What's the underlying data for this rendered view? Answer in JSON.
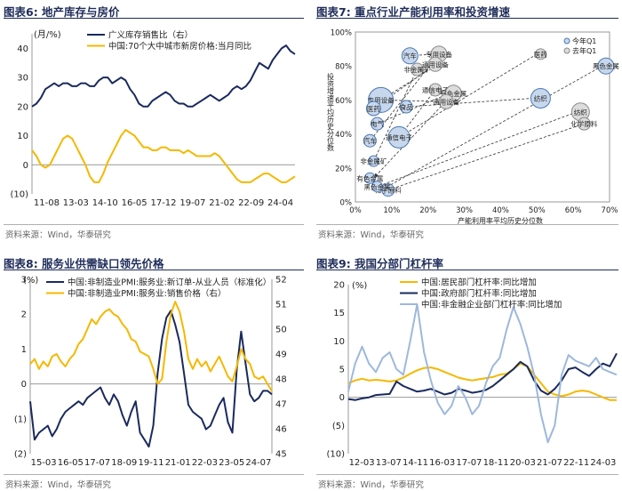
{
  "colors": {
    "navy": "#1a2a5e",
    "gold": "#f5b800",
    "lightblue": "#9db8dc",
    "bubbleFill": "#c8d8ec",
    "bubbleEdge": "#4a78b5",
    "grayFill": "#dcdcdc",
    "grayEdge": "#888888",
    "title": "#1f2d5a"
  },
  "chart_data": [
    {
      "id": "c6",
      "type": "line",
      "title": "图表6:  地产库存与房价",
      "unit_label": "(月/%)",
      "source": "资料来源：Wind，华泰研究",
      "x_ticks": [
        "11-08",
        "13-03",
        "14-10",
        "16-05",
        "17-12",
        "19-07",
        "21-02",
        "22-09",
        "24-04"
      ],
      "ylim": [
        -10,
        45
      ],
      "y_ticks": [
        -10,
        0,
        10,
        20,
        30,
        40
      ],
      "y_tick_labels": [
        "(10)",
        "0",
        "10",
        "20",
        "30",
        "40"
      ],
      "series": [
        {
          "name": "广义库存销售比（右）",
          "color": "#1a2a5e",
          "values": [
            20,
            21,
            23,
            26,
            27,
            28,
            27,
            28,
            28,
            27,
            27,
            28,
            28,
            27,
            27,
            29,
            30,
            30,
            28,
            29,
            30,
            29,
            26,
            24,
            21,
            20,
            20,
            22,
            23,
            24,
            25,
            24,
            22,
            21,
            21,
            20,
            20,
            21,
            22,
            23,
            24,
            23,
            22,
            23,
            24,
            26,
            27,
            26,
            27,
            29,
            32,
            35,
            34,
            33,
            36,
            38,
            40,
            41,
            39,
            38
          ]
        },
        {
          "name": "中国:70个大中城市新房价格:当月同比",
          "color": "#f5b800",
          "values": [
            5,
            3,
            0,
            -1,
            0,
            3,
            6,
            9,
            10,
            9,
            6,
            3,
            0,
            -4,
            -6,
            -6,
            -3,
            1,
            4,
            7,
            10,
            12,
            11,
            10,
            8,
            6,
            6,
            5,
            5,
            6,
            6,
            5,
            5,
            5,
            4,
            5,
            4,
            3,
            3,
            3,
            3,
            4,
            3,
            1,
            -1,
            -3,
            -5,
            -6,
            -6,
            -6,
            -5,
            -4,
            -3,
            -3,
            -4,
            -5,
            -6,
            -6,
            -5,
            -4
          ]
        }
      ]
    },
    {
      "id": "c7",
      "type": "scatter",
      "title": "图表7:  重点行业产能利用率和投资增速",
      "source": "资料来源：Wind，华泰研究",
      "xlabel": "产能利用率平均历史分位数",
      "ylabel": "投资增速平均历史分位数",
      "xlim": [
        0,
        0.7
      ],
      "ylim": [
        0,
        1.0
      ],
      "x_ticks": [
        0,
        0.1,
        0.2,
        0.3,
        0.4,
        0.5,
        0.6,
        0.7
      ],
      "x_tick_labels": [
        "0%",
        "10%",
        "20%",
        "30%",
        "40%",
        "50%",
        "60%",
        "70%"
      ],
      "y_ticks": [
        0,
        0.2,
        0.4,
        0.6,
        0.8,
        1.0
      ],
      "y_tick_labels": [
        "0%",
        "20%",
        "40%",
        "60%",
        "80%",
        "100%"
      ],
      "legend": [
        "今年Q1",
        "去年Q1"
      ],
      "points": [
        {
          "label": "汽车",
          "x": 0.15,
          "y": 0.86,
          "size": 9,
          "cur": true
        },
        {
          "label": "专用设备",
          "x": 0.23,
          "y": 0.87,
          "size": 9,
          "cur": false
        },
        {
          "label": "通用设备",
          "x": 0.22,
          "y": 0.81,
          "size": 8,
          "cur": false
        },
        {
          "label": "非金属矿",
          "x": 0.17,
          "y": 0.78,
          "size": 7,
          "cur": false
        },
        {
          "label": "医药",
          "x": 0.51,
          "y": 0.87,
          "size": 6,
          "cur": false
        },
        {
          "label": "黑色金属",
          "x": 0.69,
          "y": 0.8,
          "size": 9,
          "cur": true
        },
        {
          "label": "通信电子",
          "x": 0.22,
          "y": 0.66,
          "size": 7,
          "cur": false
        },
        {
          "label": "有色金属",
          "x": 0.27,
          "y": 0.64,
          "size": 9,
          "cur": false
        },
        {
          "label": "通用设备",
          "x": 0.25,
          "y": 0.59,
          "size": 8,
          "cur": false
        },
        {
          "label": "纺织",
          "x": 0.51,
          "y": 0.61,
          "size": 11,
          "cur": true
        },
        {
          "label": "食品",
          "x": 0.14,
          "y": 0.56,
          "size": 7,
          "cur": true
        },
        {
          "label": "专用设备",
          "x": 0.07,
          "y": 0.6,
          "size": 14,
          "cur": true
        },
        {
          "label": "医药",
          "x": 0.05,
          "y": 0.55,
          "size": 8,
          "cur": true
        },
        {
          "label": "纺织",
          "x": 0.62,
          "y": 0.53,
          "size": 10,
          "cur": false
        },
        {
          "label": "化学原料",
          "x": 0.63,
          "y": 0.46,
          "size": 7,
          "cur": false
        },
        {
          "label": "电气",
          "x": 0.06,
          "y": 0.46,
          "size": 7,
          "cur": true
        },
        {
          "label": "汽车",
          "x": 0.04,
          "y": 0.36,
          "size": 7,
          "cur": true
        },
        {
          "label": "通信电子",
          "x": 0.12,
          "y": 0.38,
          "size": 12,
          "cur": true
        },
        {
          "label": "非金属矿",
          "x": 0.05,
          "y": 0.24,
          "size": 6,
          "cur": true
        },
        {
          "label": "有色金属",
          "x": 0.04,
          "y": 0.14,
          "size": 6,
          "cur": true
        },
        {
          "label": "化学原料",
          "x": 0.09,
          "y": 0.07,
          "size": 7,
          "cur": true
        },
        {
          "label": "黑色金属",
          "x": 0.06,
          "y": 0.09,
          "size": 6,
          "cur": true
        }
      ],
      "arrows": [
        [
          0.22,
          0.87,
          0.15,
          0.86
        ],
        [
          0.5,
          0.87,
          0.12,
          0.38
        ],
        [
          0.63,
          0.46,
          0.09,
          0.07
        ],
        [
          0.61,
          0.53,
          0.06,
          0.09
        ],
        [
          0.68,
          0.8,
          0.08,
          0.08
        ],
        [
          0.27,
          0.64,
          0.05,
          0.14
        ],
        [
          0.25,
          0.59,
          0.07,
          0.6
        ],
        [
          0.22,
          0.66,
          0.12,
          0.38
        ],
        [
          0.17,
          0.78,
          0.05,
          0.24
        ],
        [
          0.22,
          0.81,
          0.05,
          0.55
        ],
        [
          0.49,
          0.61,
          0.14,
          0.56
        ],
        [
          0.26,
          0.64,
          0.06,
          0.46
        ],
        [
          0.23,
          0.87,
          0.04,
          0.36
        ],
        [
          0.22,
          0.8,
          0.07,
          0.6
        ]
      ]
    },
    {
      "id": "c8",
      "type": "line",
      "title": "图表8:  服务业供需缺口领先价格",
      "unit_label": "(%)",
      "source": "资料来源：Wind，华泰研究",
      "x_ticks": [
        "15-03",
        "16-05",
        "17-07",
        "18-09",
        "19-11",
        "21-01",
        "22-03",
        "23-05",
        "24-07"
      ],
      "ylim_left": [
        -2,
        3
      ],
      "ylim_right": [
        45,
        52
      ],
      "y_ticks_left": [
        -2,
        -1,
        0,
        1,
        2,
        3
      ],
      "y_tick_labels_left": [
        "(2)",
        "(1)",
        "0",
        "1",
        "2",
        "3"
      ],
      "y_ticks_right": [
        45,
        46,
        47,
        48,
        49,
        50,
        51,
        52
      ],
      "y_tick_labels_right": [
        "45",
        "46",
        "47",
        "48",
        "49",
        "50",
        "51",
        "52"
      ],
      "series": [
        {
          "name": "中国:非制造业PMI:服务业:新订单-从业人员（标准化）",
          "color": "#1a2a5e",
          "axis": "left",
          "values": [
            -0.5,
            -1.6,
            -1.4,
            -1.3,
            -1.2,
            -1.5,
            -1.3,
            -1.0,
            -0.8,
            -0.7,
            -0.6,
            -0.5,
            -0.6,
            -0.4,
            -0.3,
            -0.2,
            -0.1,
            -0.4,
            -0.6,
            -0.3,
            -0.5,
            -0.9,
            -1.2,
            -0.8,
            -0.5,
            -1.4,
            -1.6,
            -1.8,
            -1.2,
            0.3,
            1.3,
            1.9,
            2.1,
            1.7,
            1.2,
            0.3,
            -0.6,
            -0.8,
            -0.9,
            -1.0,
            -1.3,
            -1.2,
            -0.9,
            -0.6,
            -0.4,
            -1.1,
            -1.4,
            0.4,
            1.5,
            0.6,
            -0.3,
            -0.5,
            -0.4,
            -0.2,
            -0.2,
            -0.3
          ]
        },
        {
          "name": "中国:非制造业PMI:服务业:销售价格（右）",
          "color": "#f5b800",
          "axis": "right",
          "values": [
            48.6,
            48.8,
            48.4,
            48.7,
            48.5,
            48.9,
            49.0,
            48.7,
            48.5,
            48.8,
            49.0,
            49.4,
            49.6,
            50.0,
            50.4,
            50.2,
            50.5,
            50.7,
            50.8,
            50.6,
            50.5,
            50.2,
            50.0,
            49.6,
            49.5,
            49.1,
            49.0,
            48.9,
            48.4,
            47.8,
            48.0,
            49.5,
            50.6,
            51.1,
            50.7,
            49.9,
            48.8,
            48.4,
            48.8,
            48.5,
            48.7,
            48.3,
            48.6,
            48.9,
            48.5,
            48.1,
            47.9,
            48.5,
            49.2,
            48.8,
            48.6,
            48.1,
            48.0,
            48.1,
            47.8,
            47.5
          ]
        }
      ]
    },
    {
      "id": "c9",
      "type": "line",
      "title": "图表9:  我国分部门杠杆率",
      "unit_label": "(%)",
      "source": "资料来源：Wind，华泰研究",
      "x_ticks": [
        "12-03",
        "13-07",
        "14-11",
        "16-03",
        "17-07",
        "18-11",
        "20-03",
        "21-07",
        "22-11",
        "24-03"
      ],
      "ylim": [
        -10,
        20
      ],
      "y_ticks": [
        -10,
        -5,
        0,
        5,
        10,
        15,
        20
      ],
      "y_tick_labels": [
        "(10)",
        "(5)",
        "0",
        "5",
        "10",
        "15",
        "20"
      ],
      "series": [
        {
          "name": "中国:居民部门杠杆率:同比增加",
          "color": "#f5b800",
          "values": [
            2.5,
            3.0,
            3.3,
            3.0,
            3.1,
            3.0,
            2.8,
            3.0,
            3.5,
            4.2,
            4.8,
            5.2,
            5.3,
            5.0,
            4.5,
            4.0,
            3.5,
            3.2,
            3.0,
            3.2,
            3.4,
            3.6,
            4.0,
            4.2,
            5.0,
            6.0,
            5.5,
            4.0,
            2.5,
            1.0,
            0.5,
            0.2,
            0.5,
            1.0,
            1.2,
            1.0,
            0.5,
            0.0,
            -0.5,
            -0.5
          ]
        },
        {
          "name": "中国:政府部门杠杆率:同比增加",
          "color": "#1a2a5e",
          "values": [
            -0.3,
            -0.5,
            -0.2,
            0.0,
            0.4,
            0.5,
            0.6,
            2.8,
            2.0,
            1.5,
            1.0,
            1.2,
            1.5,
            1.0,
            0.5,
            0.8,
            1.5,
            1.2,
            0.8,
            1.0,
            1.3,
            2.0,
            3.0,
            4.0,
            5.0,
            6.3,
            5.5,
            3.0,
            1.2,
            0.5,
            1.5,
            3.0,
            5.0,
            5.3,
            4.5,
            3.8,
            5.0,
            6.0,
            5.5,
            7.8
          ]
        },
        {
          "name": "中国:非金融企业部门杠杆率:同比增加",
          "color": "#9db8dc",
          "values": [
            1.0,
            6.0,
            9.0,
            6.0,
            4.5,
            7.0,
            8.0,
            5.0,
            4.0,
            10.0,
            16.5,
            8.0,
            3.0,
            -1.0,
            -3.0,
            -1.5,
            2.0,
            0.0,
            -3.0,
            -1.5,
            2.5,
            5.5,
            7.0,
            12.0,
            16.0,
            13.0,
            9.0,
            4.0,
            -3.0,
            -8.0,
            -5.0,
            4.0,
            7.5,
            6.5,
            6.0,
            5.5,
            7.0,
            5.0,
            4.5,
            4.0
          ]
        }
      ]
    }
  ]
}
